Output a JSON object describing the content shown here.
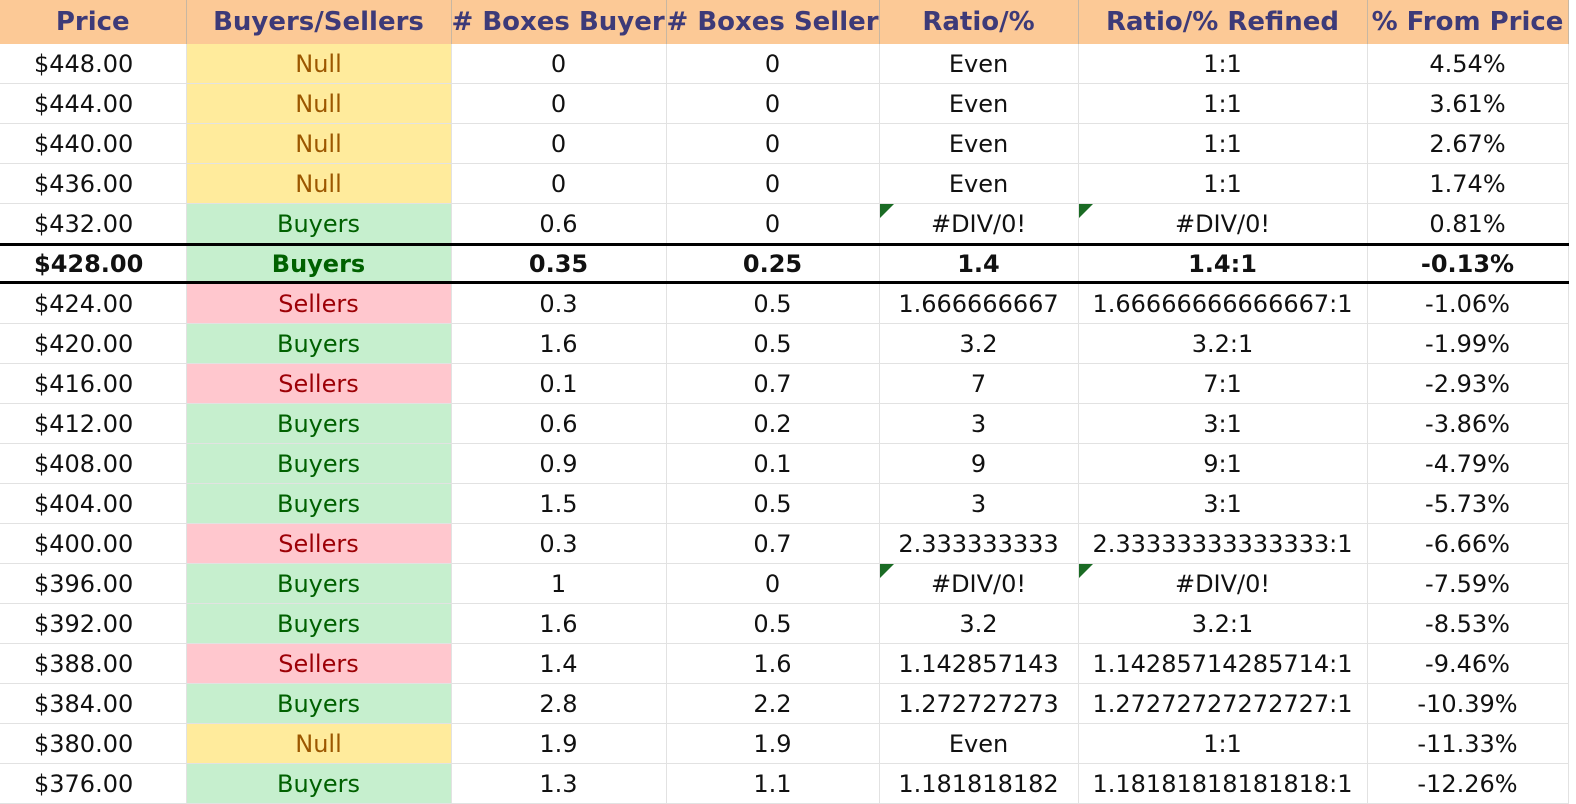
{
  "headers": [
    "Price",
    "Buyers/Sellers",
    "# Boxes Buyers",
    "# Boxes Sellers",
    "Ratio/%",
    "Ratio/% Refined",
    "% From Price"
  ],
  "rows": [
    {
      "price": "$448.00",
      "side": "Null",
      "buyers": "0",
      "sellers": "0",
      "ratio": "Even",
      "refined": "1:1",
      "from": "4.54%",
      "flag": false
    },
    {
      "price": "$444.00",
      "side": "Null",
      "buyers": "0",
      "sellers": "0",
      "ratio": "Even",
      "refined": "1:1",
      "from": "3.61%",
      "flag": false
    },
    {
      "price": "$440.00",
      "side": "Null",
      "buyers": "0",
      "sellers": "0",
      "ratio": "Even",
      "refined": "1:1",
      "from": "2.67%",
      "flag": false
    },
    {
      "price": "$436.00",
      "side": "Null",
      "buyers": "0",
      "sellers": "0",
      "ratio": "Even",
      "refined": "1:1",
      "from": "1.74%",
      "flag": false
    },
    {
      "price": "$432.00",
      "side": "Buyers",
      "buyers": "0.6",
      "sellers": "0",
      "ratio": "#DIV/0!",
      "refined": "#DIV/0!",
      "from": "0.81%",
      "flag": true
    },
    {
      "price": "$428.00",
      "side": "Buyers",
      "buyers": "0.35",
      "sellers": "0.25",
      "ratio": "1.4",
      "refined": "1.4:1",
      "from": "-0.13%",
      "flag": false,
      "highlight": true
    },
    {
      "price": "$424.00",
      "side": "Sellers",
      "buyers": "0.3",
      "sellers": "0.5",
      "ratio": "1.666666667",
      "refined": "1.66666666666667:1",
      "from": "-1.06%",
      "flag": false
    },
    {
      "price": "$420.00",
      "side": "Buyers",
      "buyers": "1.6",
      "sellers": "0.5",
      "ratio": "3.2",
      "refined": "3.2:1",
      "from": "-1.99%",
      "flag": false
    },
    {
      "price": "$416.00",
      "side": "Sellers",
      "buyers": "0.1",
      "sellers": "0.7",
      "ratio": "7",
      "refined": "7:1",
      "from": "-2.93%",
      "flag": false
    },
    {
      "price": "$412.00",
      "side": "Buyers",
      "buyers": "0.6",
      "sellers": "0.2",
      "ratio": "3",
      "refined": "3:1",
      "from": "-3.86%",
      "flag": false
    },
    {
      "price": "$408.00",
      "side": "Buyers",
      "buyers": "0.9",
      "sellers": "0.1",
      "ratio": "9",
      "refined": "9:1",
      "from": "-4.79%",
      "flag": false
    },
    {
      "price": "$404.00",
      "side": "Buyers",
      "buyers": "1.5",
      "sellers": "0.5",
      "ratio": "3",
      "refined": "3:1",
      "from": "-5.73%",
      "flag": false
    },
    {
      "price": "$400.00",
      "side": "Sellers",
      "buyers": "0.3",
      "sellers": "0.7",
      "ratio": "2.333333333",
      "refined": "2.33333333333333:1",
      "from": "-6.66%",
      "flag": false
    },
    {
      "price": "$396.00",
      "side": "Buyers",
      "buyers": "1",
      "sellers": "0",
      "ratio": "#DIV/0!",
      "refined": "#DIV/0!",
      "from": "-7.59%",
      "flag": true
    },
    {
      "price": "$392.00",
      "side": "Buyers",
      "buyers": "1.6",
      "sellers": "0.5",
      "ratio": "3.2",
      "refined": "3.2:1",
      "from": "-8.53%",
      "flag": false
    },
    {
      "price": "$388.00",
      "side": "Sellers",
      "buyers": "1.4",
      "sellers": "1.6",
      "ratio": "1.142857143",
      "refined": "1.14285714285714:1",
      "from": "-9.46%",
      "flag": false
    },
    {
      "price": "$384.00",
      "side": "Buyers",
      "buyers": "2.8",
      "sellers": "2.2",
      "ratio": "1.272727273",
      "refined": "1.27272727272727:1",
      "from": "-10.39%",
      "flag": false
    },
    {
      "price": "$380.00",
      "side": "Null",
      "buyers": "1.9",
      "sellers": "1.9",
      "ratio": "Even",
      "refined": "1:1",
      "from": "-11.33%",
      "flag": false
    },
    {
      "price": "$376.00",
      "side": "Buyers",
      "buyers": "1.3",
      "sellers": "1.1",
      "ratio": "1.181818182",
      "refined": "1.18181818181818:1",
      "from": "-12.26%",
      "flag": false
    }
  ],
  "colors": {
    "header_bg": "#fcc996",
    "header_text": "#3d3a78",
    "null_bg": "#ffeb9c",
    "null_text": "#9c5700",
    "buyers_bg": "#c6efce",
    "buyers_text": "#006100",
    "sellers_bg": "#ffc7ce",
    "sellers_text": "#9c0006",
    "error_flag": "#1a6b24"
  }
}
